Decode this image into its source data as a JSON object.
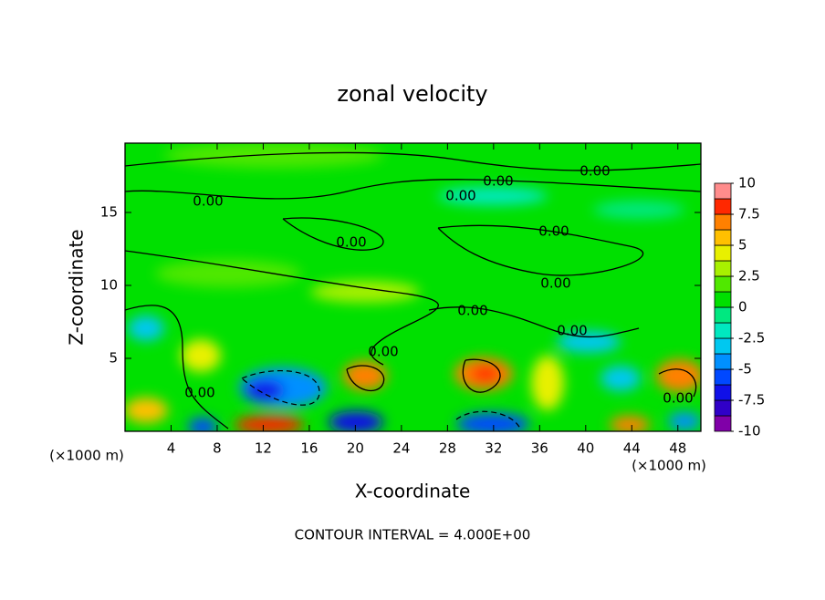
{
  "chart_data": {
    "type": "contour",
    "title": "zonal velocity",
    "xlabel": "X-coordinate",
    "ylabel": "Z-coordinate",
    "x_unit_label": "(×1000 m)",
    "footer": "CONTOUR INTERVAL = 4.000E+00",
    "xlim": [
      0,
      50
    ],
    "xticks": [
      4,
      8,
      12,
      16,
      20,
      24,
      28,
      32,
      36,
      40,
      44,
      48
    ],
    "ylim": [
      0,
      19.75
    ],
    "yticks": [
      5,
      10,
      15
    ],
    "colorbar": {
      "lim": [
        -10,
        10
      ],
      "ticks": [
        10,
        7.5,
        5,
        2.5,
        0,
        -2.5,
        -5,
        -7.5,
        -10
      ],
      "colors": [
        "#8000a8",
        "#3000c8",
        "#1010e8",
        "#0048ff",
        "#0090ff",
        "#00c8f0",
        "#00e8c0",
        "#00e880",
        "#00e000",
        "#50e800",
        "#a8f000",
        "#e8f000",
        "#ffc000",
        "#ff8000",
        "#ff2800",
        "#ff8c8c"
      ]
    },
    "contour_labels": [
      "0.00",
      "0.00",
      "0.00",
      "0.00",
      "0.00",
      "0.00",
      "0.00",
      "0.00",
      "0.00",
      "0.00",
      "0.00",
      "0.00"
    ]
  }
}
